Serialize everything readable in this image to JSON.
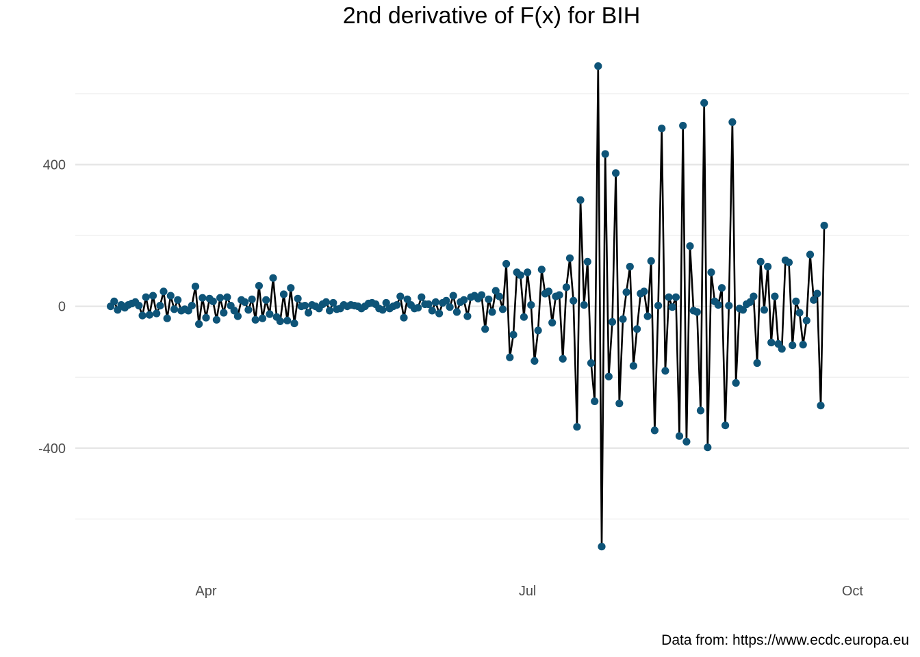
{
  "chart_data": {
    "type": "line",
    "title": "2nd derivative of F(x) for BIH",
    "caption": "Data from: https://www.ecdc.europa.eu",
    "xlabel": "",
    "ylabel": "",
    "x_start": "2020-03-05",
    "x_end": "2020-10-04",
    "xlim": [
      "2020-02-24",
      "2020-10-17"
    ],
    "ylim": [
      -750,
      710
    ],
    "x_ticks": [
      {
        "date": "2020-04-01",
        "label": "Apr"
      },
      {
        "date": "2020-07-01",
        "label": "Jul"
      },
      {
        "date": "2020-10-01",
        "label": "Oct"
      }
    ],
    "y_ticks": [
      {
        "value": -400,
        "label": "-400"
      },
      {
        "value": 0,
        "label": "0"
      },
      {
        "value": 400,
        "label": "400"
      }
    ],
    "y_minor_ticks": [
      -600,
      -200,
      200,
      600
    ],
    "grid": true,
    "legend": "none",
    "series": [
      {
        "name": "2nd derivative",
        "line_color": "#000000",
        "point_color": "#0e5478",
        "values": [
          0,
          14,
          -10,
          4,
          -4,
          4,
          8,
          12,
          2,
          -26,
          26,
          -24,
          30,
          -20,
          2,
          42,
          -34,
          30,
          -8,
          18,
          -12,
          -8,
          -12,
          2,
          56,
          -50,
          24,
          -32,
          22,
          14,
          -38,
          24,
          -18,
          26,
          2,
          -12,
          -28,
          18,
          12,
          -10,
          20,
          -38,
          58,
          -34,
          18,
          -22,
          80,
          -30,
          -42,
          34,
          -40,
          52,
          -48,
          22,
          0,
          2,
          -18,
          4,
          0,
          -6,
          6,
          12,
          -12,
          10,
          -8,
          -6,
          4,
          0,
          4,
          2,
          0,
          -6,
          0,
          8,
          10,
          6,
          -6,
          -10,
          10,
          -6,
          0,
          4,
          28,
          -32,
          20,
          4,
          -6,
          -4,
          26,
          6,
          6,
          -12,
          12,
          -20,
          10,
          16,
          -2,
          30,
          -16,
          12,
          18,
          -28,
          26,
          30,
          22,
          32,
          -64,
          20,
          -16,
          44,
          28,
          -8,
          120,
          -144,
          -80,
          96,
          88,
          -30,
          96,
          4,
          -154,
          -68,
          104,
          36,
          42,
          -46,
          28,
          32,
          -148,
          54,
          136,
          16,
          -340,
          300,
          4,
          126,
          -160,
          -268,
          678,
          -678,
          430,
          -198,
          -44,
          376,
          -274,
          -36,
          40,
          112,
          -168,
          -64,
          36,
          42,
          -28,
          128,
          -350,
          2,
          502,
          -182,
          26,
          -2,
          26,
          -366,
          510,
          -382,
          170,
          -12,
          -16,
          -294,
          574,
          -398,
          96,
          14,
          4,
          52,
          -336,
          2,
          520,
          -216,
          -6,
          -10,
          6,
          12,
          28,
          -160,
          126,
          -10,
          112,
          -102,
          28,
          -106,
          -120,
          130,
          124,
          -110,
          14,
          -18,
          -108,
          -40,
          146,
          18,
          36,
          -280,
          228
        ]
      }
    ]
  }
}
